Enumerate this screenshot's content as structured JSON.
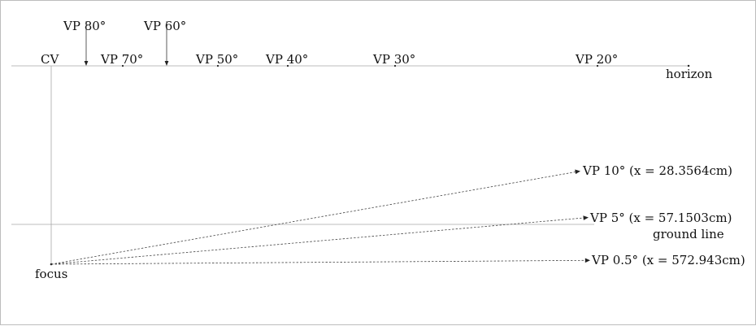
{
  "labels": {
    "horizon": "horizon",
    "ground_line": "ground line",
    "cv": "CV",
    "focus": "focus"
  },
  "horizon_vps": [
    {
      "text": "VP 70°"
    },
    {
      "text": "VP 50°"
    },
    {
      "text": "VP 40°"
    },
    {
      "text": "VP 30°"
    },
    {
      "text": "VP 20°"
    }
  ],
  "raised_vps": [
    {
      "text": "VP 80°"
    },
    {
      "text": "VP 60°"
    }
  ],
  "lower_vps": [
    {
      "prefix": "VP 10° (x = ",
      "value": "28.3564",
      "unit": "cm)"
    },
    {
      "prefix": "VP 5° (x = ",
      "value": "57.1503",
      "unit": "cm)"
    },
    {
      "prefix": "VP 0.5° (x = ",
      "value": "572.943",
      "unit": "cm)"
    }
  ],
  "colors": {
    "reference_lines": "#a8a8a8",
    "ink": "#111111"
  }
}
